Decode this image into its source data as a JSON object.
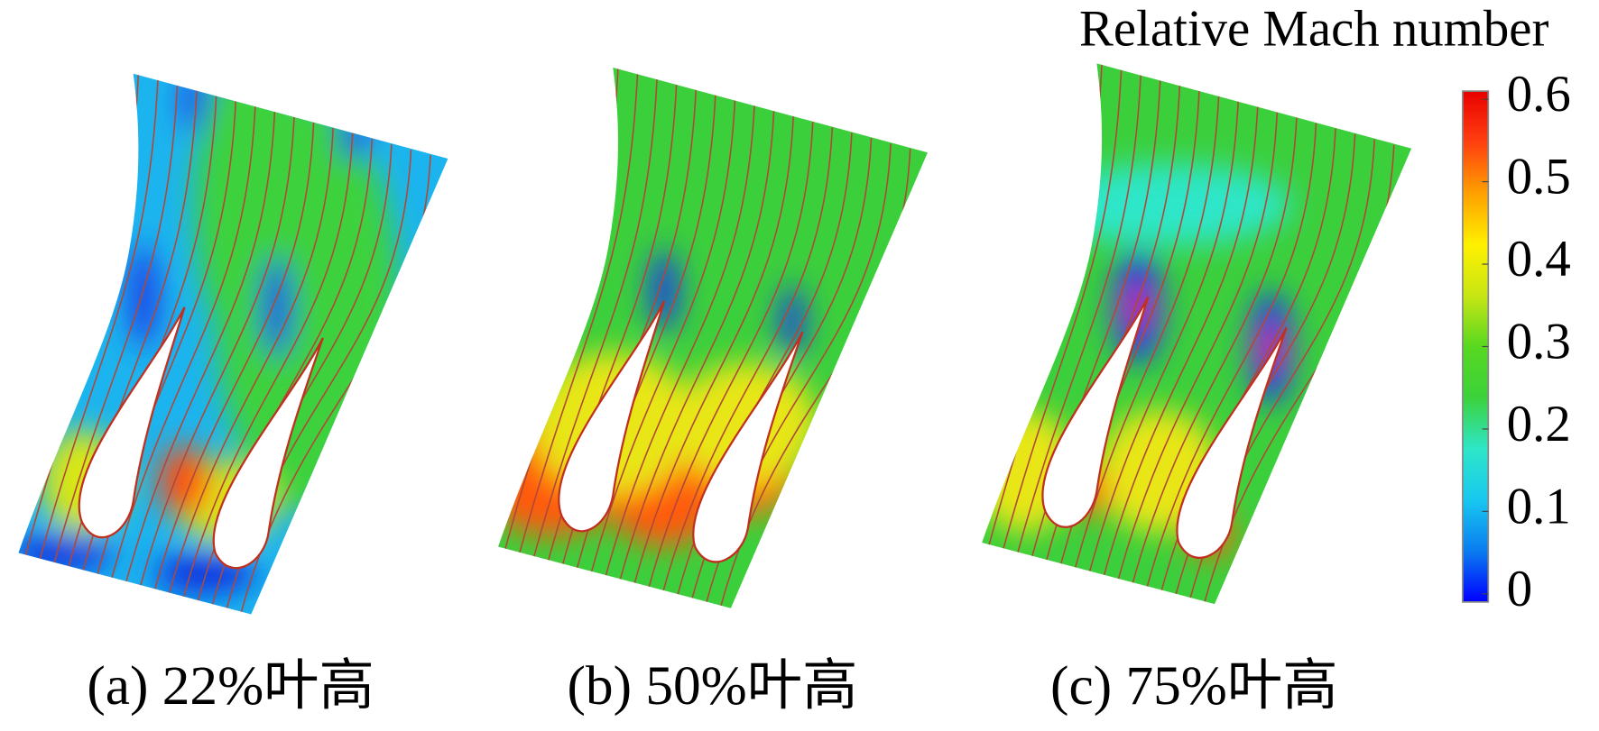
{
  "colorbar": {
    "title": "Relative Mach number",
    "range": [
      0,
      0.6
    ],
    "ticks": [
      0,
      0.1,
      0.2,
      0.3,
      0.4,
      0.5,
      0.6
    ],
    "colors": [
      "#0000ff",
      "#0a7cf0",
      "#18c8f0",
      "#2ee6c8",
      "#3cd23c",
      "#58d820",
      "#c8e614",
      "#fff000",
      "#ffa000",
      "#ff4010",
      "#e80000"
    ]
  },
  "panels": [
    {
      "caption": "(a) 22%叶高"
    },
    {
      "caption": "(b) 50%叶高"
    },
    {
      "caption": "(c) 75%叶高"
    }
  ]
}
